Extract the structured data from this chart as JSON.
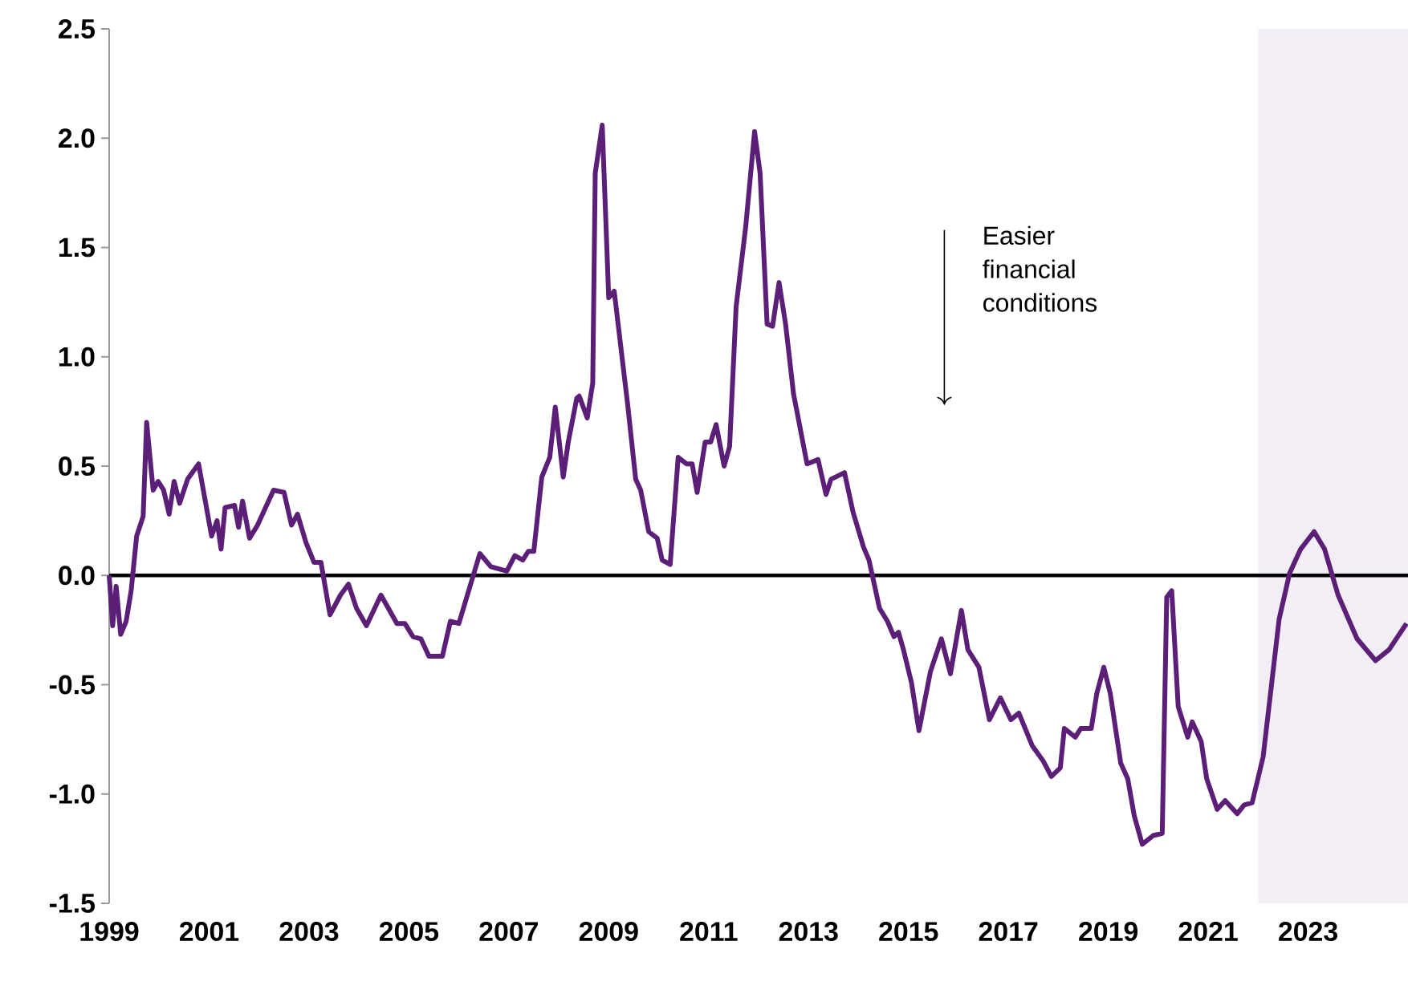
{
  "chart_data": {
    "type": "line",
    "x": [
      1999.0,
      1999.07,
      1999.14,
      1999.23,
      1999.34,
      1999.44,
      1999.55,
      1999.68,
      1999.75,
      1999.88,
      1999.98,
      2000.09,
      2000.2,
      2000.3,
      2000.41,
      2000.57,
      2000.79,
      2001.05,
      2001.16,
      2001.24,
      2001.32,
      2001.51,
      2001.59,
      2001.67,
      2001.81,
      2001.97,
      2002.13,
      2002.29,
      2002.5,
      2002.65,
      2002.77,
      2002.94,
      2003.1,
      2003.24,
      2003.42,
      2003.63,
      2003.79,
      2003.95,
      2004.15,
      2004.44,
      2004.76,
      2004.92,
      2005.08,
      2005.24,
      2005.4,
      2005.67,
      2005.83,
      2006.0,
      2006.42,
      2006.64,
      2006.96,
      2007.12,
      2007.28,
      2007.39,
      2007.5,
      2007.66,
      2007.82,
      2007.93,
      2008.09,
      2008.19,
      2008.36,
      2008.41,
      2008.57,
      2008.68,
      2008.73,
      2008.87,
      2009.0,
      2009.11,
      2009.38,
      2009.54,
      2009.64,
      2009.8,
      2009.97,
      2010.07,
      2010.23,
      2010.39,
      2010.56,
      2010.67,
      2010.77,
      2010.93,
      2011.04,
      2011.15,
      2011.31,
      2011.42,
      2011.55,
      2011.74,
      2011.92,
      2012.03,
      2012.17,
      2012.28,
      2012.41,
      2012.54,
      2012.7,
      2012.97,
      2013.19,
      2013.35,
      2013.45,
      2013.72,
      2013.89,
      2014.1,
      2014.21,
      2014.42,
      2014.58,
      2014.71,
      2014.8,
      2014.9,
      2015.06,
      2015.21,
      2015.44,
      2015.66,
      2015.84,
      2016.06,
      2016.19,
      2016.41,
      2016.62,
      2016.84,
      2017.05,
      2017.21,
      2017.48,
      2017.7,
      2017.86,
      2018.04,
      2018.12,
      2018.34,
      2018.45,
      2018.66,
      2018.77,
      2018.91,
      2019.04,
      2019.25,
      2019.39,
      2019.52,
      2019.68,
      2019.9,
      2020.08,
      2020.17,
      2020.27,
      2020.4,
      2020.59,
      2020.68,
      2020.86,
      2020.97,
      2021.18,
      2021.34,
      2021.58,
      2021.72,
      2021.88,
      2022.1,
      2022.42,
      2022.63,
      2022.85,
      2023.12,
      2023.33,
      2023.6,
      2023.98,
      2024.35,
      2024.62,
      2024.97
    ],
    "series": [
      {
        "color": "#5b1f78",
        "values": [
          0.0,
          -0.23,
          -0.05,
          -0.27,
          -0.21,
          -0.07,
          0.18,
          0.27,
          0.7,
          0.39,
          0.43,
          0.39,
          0.28,
          0.43,
          0.33,
          0.44,
          0.51,
          0.18,
          0.25,
          0.12,
          0.31,
          0.32,
          0.22,
          0.34,
          0.17,
          0.23,
          0.31,
          0.39,
          0.38,
          0.23,
          0.28,
          0.15,
          0.06,
          0.06,
          -0.18,
          -0.09,
          -0.04,
          -0.15,
          -0.23,
          -0.09,
          -0.22,
          -0.22,
          -0.28,
          -0.29,
          -0.37,
          -0.37,
          -0.21,
          -0.22,
          0.1,
          0.04,
          0.02,
          0.09,
          0.07,
          0.11,
          0.11,
          0.45,
          0.54,
          0.77,
          0.45,
          0.61,
          0.81,
          0.82,
          0.72,
          0.88,
          1.84,
          2.06,
          1.27,
          1.3,
          0.78,
          0.44,
          0.39,
          0.2,
          0.17,
          0.07,
          0.05,
          0.54,
          0.51,
          0.51,
          0.38,
          0.61,
          0.61,
          0.69,
          0.5,
          0.59,
          1.23,
          1.59,
          2.03,
          1.84,
          1.15,
          1.14,
          1.34,
          1.15,
          0.83,
          0.51,
          0.53,
          0.37,
          0.44,
          0.47,
          0.29,
          0.13,
          0.07,
          -0.15,
          -0.21,
          -0.28,
          -0.26,
          -0.34,
          -0.49,
          -0.71,
          -0.44,
          -0.29,
          -0.45,
          -0.16,
          -0.34,
          -0.42,
          -0.66,
          -0.56,
          -0.66,
          -0.63,
          -0.78,
          -0.85,
          -0.92,
          -0.88,
          -0.7,
          -0.74,
          -0.7,
          -0.7,
          -0.54,
          -0.42,
          -0.54,
          -0.86,
          -0.93,
          -1.1,
          -1.23,
          -1.19,
          -1.18,
          -0.1,
          -0.07,
          -0.6,
          -0.74,
          -0.67,
          -0.76,
          -0.93,
          -1.07,
          -1.03,
          -1.09,
          -1.05,
          -1.04,
          -0.83,
          -0.2,
          0.01,
          0.12,
          0.2,
          0.12,
          -0.09,
          -0.29,
          -0.39,
          -0.34,
          -0.22
        ]
      }
    ],
    "xlim": [
      1999,
      2025
    ],
    "ylim": [
      -1.5,
      2.5
    ],
    "xticks": [
      1999,
      2001,
      2003,
      2005,
      2007,
      2009,
      2011,
      2013,
      2015,
      2017,
      2019,
      2021,
      2023
    ],
    "yticks": [
      -1.5,
      {
        "value": -1,
        "label": "-1.0"
      },
      -0.5,
      {
        "value": 0,
        "label": "0.0"
      },
      0.5,
      {
        "value": 1,
        "label": "1.0"
      },
      1.5,
      {
        "value": 2,
        "label": "2.0"
      },
      2.5
    ],
    "ref_lines": [
      {
        "axis": "y",
        "value": 0,
        "color": "#000000"
      }
    ],
    "bands": [
      {
        "axis": "x",
        "from": 2022,
        "to": 2025,
        "color": "#f3eef6"
      }
    ],
    "annotations": [
      "Easier financial conditions"
    ]
  }
}
